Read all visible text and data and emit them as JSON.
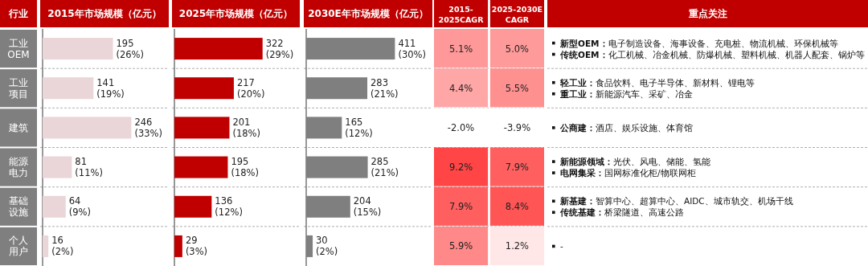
{
  "chart_data": [
    {
      "type": "bar",
      "orientation": "horizontal",
      "title": "2015年市场规模（亿元）",
      "ylabel": "行业",
      "categories": [
        "工业OEM",
        "工业项目",
        "建筑",
        "能源电力",
        "基础设施",
        "个人用户"
      ],
      "values": [
        195,
        141,
        246,
        81,
        64,
        16
      ],
      "value_labels": [
        "195\n(26%)",
        "141\n(19%)",
        "246\n(33%)",
        "81\n(11%)",
        "64\n(9%)",
        "16\n(2%)"
      ],
      "color": "#ead5d8"
    },
    {
      "type": "bar",
      "orientation": "horizontal",
      "title": "2025年市场规模（亿元）",
      "categories": [
        "工业OEM",
        "工业项目",
        "建筑",
        "能源电力",
        "基础设施",
        "个人用户"
      ],
      "values": [
        322,
        217,
        201,
        195,
        136,
        29
      ],
      "value_labels": [
        "322\n(29%)",
        "217\n(20%)",
        "201\n(18%)",
        "195\n(18%)",
        "136\n(12%)",
        "29\n(3%)"
      ],
      "color": "#c00000",
      "tick_labels": false
    },
    {
      "type": "bar",
      "orientation": "horizontal",
      "title": "2030E年市场规模（亿元）",
      "categories": [
        "工业OEM",
        "工业项目",
        "建筑",
        "能源电力",
        "基础设施",
        "个人用户"
      ],
      "values": [
        411,
        283,
        165,
        285,
        204,
        30
      ],
      "value_labels": [
        "411\n(30%)",
        "283\n(21%)",
        "165\n(12%)",
        "285\n(21%)",
        "204\n(15%)",
        "30\n(2%)"
      ],
      "color": "#7f7f7f",
      "tick_labels": false
    },
    {
      "type": "heatmap",
      "categories": [
        "2015-\n2025CAGR",
        "2025-2030E\nCAGR"
      ],
      "y_categories": [
        null,
        null,
        null,
        null,
        null,
        null
      ],
      "cells": [
        [
          5.1,
          5.0
        ],
        [
          4.4,
          5.5
        ],
        [
          -2.0,
          -3.9
        ],
        [
          9.2,
          7.9
        ],
        [
          7.9,
          8.4
        ],
        [
          5.9,
          1.2
        ]
      ],
      "cell_labels": [
        [
          "5.1%",
          "5.0%"
        ],
        [
          "4.4%",
          "5.5%"
        ],
        [
          "-2.0%",
          "-3.9%"
        ],
        [
          "9.2%",
          "7.9%"
        ],
        [
          "7.9%",
          "8.4%"
        ],
        [
          "5.9%",
          "1.2%"
        ]
      ]
    },
    {
      "type": "other",
      "title": "重点关注",
      "annotations": [
        {
          "text": "新型OEM：电子制造设备、海事设备、充电桩、物流机械、环保机械等",
          "y": "工业OEM"
        },
        {
          "text": "传统OEM：化工机械、冶金机械、防爆机械、塑料机械、机器人配套、锅炉等",
          "y": "工业OEM"
        },
        {
          "text": "轻工业：食品饮料、电子半导体、新材料、锂电等",
          "y": "工业项目"
        },
        {
          "text": "重工业：新能源汽车、采矿、冶金",
          "y": "工业项目"
        },
        {
          "text": "公商建：酒店、娱乐设施、体育馆",
          "y": "建筑"
        },
        {
          "text": "新能源领域：光伏、风电、储能、氢能",
          "y": "能源电力"
        },
        {
          "text": "电网集采：国网标准化柜/物联网柜",
          "y": "能源电力"
        },
        {
          "text": "新基建：智算中心、超算中心、AIDC、城市轨交、机场干线",
          "y": "基础设施"
        },
        {
          "text": "传统基建：桥梁隧道、高速公路",
          "y": "基础设施"
        },
        {
          "text": "-",
          "y": "个人用户"
        }
      ]
    }
  ]
}
